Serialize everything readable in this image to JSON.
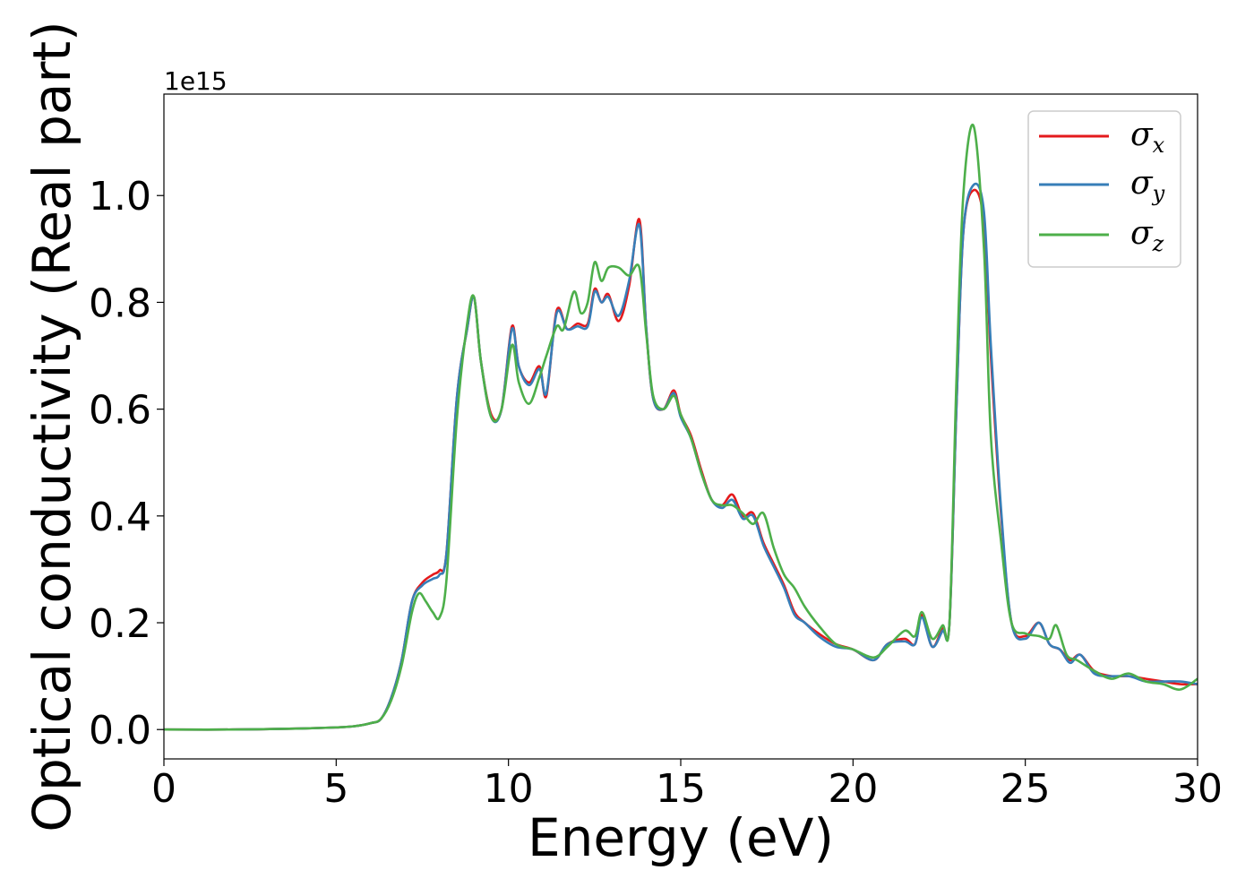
{
  "chart_data": {
    "type": "line",
    "xlabel": "Energy (eV)",
    "ylabel": "Optical conductivity (Real part)",
    "y_offset_label": "1e15",
    "y_scale": 1000000000000000.0,
    "xlim": [
      0,
      30
    ],
    "ylim": [
      -0.055,
      1.19
    ],
    "xticks": [
      0,
      5,
      10,
      15,
      20,
      25,
      30
    ],
    "xtick_labels": [
      "0",
      "5",
      "10",
      "15",
      "20",
      "25",
      "30"
    ],
    "yticks": [
      0.0,
      0.2,
      0.4,
      0.6,
      0.8,
      1.0
    ],
    "ytick_labels": [
      "0.0",
      "0.2",
      "0.4",
      "0.6",
      "0.8",
      "1.0"
    ],
    "grid": false,
    "legend_position": "top-right",
    "series": [
      {
        "name": "σ",
        "subscript": "x",
        "color": "#e41a1c",
        "x": [
          0,
          2,
          4,
          5,
          5.5,
          6,
          6.3,
          6.6,
          6.9,
          7.2,
          7.5,
          7.8,
          8.0,
          8.2,
          8.5,
          8.8,
          9.0,
          9.2,
          9.5,
          9.8,
          10.1,
          10.3,
          10.6,
          10.9,
          11.1,
          11.4,
          11.7,
          12.0,
          12.3,
          12.5,
          12.7,
          12.9,
          13.2,
          13.5,
          13.8,
          14.0,
          14.2,
          14.5,
          14.8,
          15.0,
          15.3,
          15.6,
          15.9,
          16.2,
          16.5,
          16.8,
          17.1,
          17.4,
          17.7,
          18.0,
          18.3,
          18.6,
          19.0,
          19.5,
          20.0,
          20.6,
          21.0,
          21.5,
          21.8,
          22.0,
          22.3,
          22.6,
          22.8,
          23.0,
          23.2,
          23.5,
          23.8,
          24.0,
          24.3,
          24.6,
          25.0,
          25.4,
          25.7,
          26.0,
          26.3,
          26.6,
          27.0,
          27.5,
          28.0,
          28.5,
          29.0,
          29.5,
          30.0
        ],
        "values": [
          0.0,
          0.0,
          0.002,
          0.004,
          0.006,
          0.012,
          0.02,
          0.06,
          0.13,
          0.24,
          0.275,
          0.29,
          0.298,
          0.33,
          0.62,
          0.75,
          0.81,
          0.69,
          0.59,
          0.6,
          0.755,
          0.68,
          0.65,
          0.68,
          0.625,
          0.785,
          0.75,
          0.76,
          0.76,
          0.825,
          0.8,
          0.815,
          0.765,
          0.83,
          0.955,
          0.75,
          0.62,
          0.6,
          0.635,
          0.59,
          0.55,
          0.485,
          0.43,
          0.42,
          0.44,
          0.4,
          0.405,
          0.35,
          0.31,
          0.27,
          0.22,
          0.2,
          0.18,
          0.16,
          0.15,
          0.13,
          0.16,
          0.17,
          0.16,
          0.215,
          0.155,
          0.19,
          0.2,
          0.6,
          0.93,
          1.01,
          0.95,
          0.7,
          0.4,
          0.2,
          0.175,
          0.2,
          0.16,
          0.15,
          0.13,
          0.14,
          0.11,
          0.1,
          0.1,
          0.095,
          0.09,
          0.085,
          0.085
        ]
      },
      {
        "name": "σ",
        "subscript": "y",
        "color": "#377eb8",
        "x": [
          0,
          2,
          4,
          5,
          5.5,
          6,
          6.3,
          6.6,
          6.9,
          7.2,
          7.5,
          7.8,
          8.0,
          8.2,
          8.5,
          8.8,
          9.0,
          9.2,
          9.5,
          9.8,
          10.1,
          10.3,
          10.6,
          10.9,
          11.1,
          11.4,
          11.7,
          12.0,
          12.3,
          12.5,
          12.7,
          12.9,
          13.2,
          13.5,
          13.8,
          14.0,
          14.2,
          14.5,
          14.8,
          15.0,
          15.3,
          15.6,
          15.9,
          16.2,
          16.5,
          16.8,
          17.1,
          17.4,
          17.7,
          18.0,
          18.3,
          18.6,
          19.0,
          19.5,
          20.0,
          20.6,
          21.0,
          21.5,
          21.8,
          22.0,
          22.3,
          22.6,
          22.8,
          23.0,
          23.2,
          23.5,
          23.8,
          24.0,
          24.3,
          24.6,
          25.0,
          25.4,
          25.7,
          26.0,
          26.3,
          26.6,
          27.0,
          27.5,
          28.0,
          28.5,
          29.0,
          29.5,
          30.0
        ],
        "values": [
          0.0,
          0.0,
          0.002,
          0.004,
          0.006,
          0.012,
          0.02,
          0.06,
          0.13,
          0.24,
          0.27,
          0.282,
          0.29,
          0.33,
          0.62,
          0.75,
          0.81,
          0.69,
          0.585,
          0.6,
          0.75,
          0.68,
          0.645,
          0.675,
          0.63,
          0.78,
          0.75,
          0.755,
          0.755,
          0.82,
          0.8,
          0.81,
          0.775,
          0.84,
          0.945,
          0.75,
          0.62,
          0.6,
          0.63,
          0.585,
          0.545,
          0.48,
          0.43,
          0.415,
          0.43,
          0.395,
          0.4,
          0.345,
          0.305,
          0.265,
          0.215,
          0.2,
          0.175,
          0.155,
          0.15,
          0.13,
          0.16,
          0.165,
          0.16,
          0.21,
          0.155,
          0.185,
          0.2,
          0.6,
          0.93,
          1.02,
          0.97,
          0.72,
          0.41,
          0.2,
          0.17,
          0.2,
          0.16,
          0.15,
          0.125,
          0.14,
          0.105,
          0.1,
          0.1,
          0.09,
          0.09,
          0.09,
          0.085
        ]
      },
      {
        "name": "σ",
        "subscript": "z",
        "color": "#4daf4a",
        "x": [
          0,
          2,
          4,
          5,
          5.5,
          6,
          6.3,
          6.6,
          6.9,
          7.2,
          7.4,
          7.6,
          7.8,
          8.0,
          8.2,
          8.5,
          8.8,
          9.0,
          9.2,
          9.5,
          9.8,
          10.1,
          10.3,
          10.6,
          10.9,
          11.1,
          11.4,
          11.6,
          11.9,
          12.1,
          12.3,
          12.5,
          12.7,
          12.9,
          13.2,
          13.5,
          13.8,
          14.0,
          14.2,
          14.5,
          14.8,
          15.0,
          15.3,
          15.6,
          15.9,
          16.2,
          16.5,
          16.8,
          17.1,
          17.4,
          17.7,
          18.0,
          18.3,
          18.6,
          19.0,
          19.5,
          20.0,
          20.6,
          21.0,
          21.5,
          21.8,
          22.0,
          22.3,
          22.6,
          22.8,
          23.0,
          23.2,
          23.5,
          23.8,
          24.0,
          24.3,
          24.6,
          25.0,
          25.4,
          25.7,
          25.9,
          26.2,
          26.5,
          27.0,
          27.5,
          28.0,
          28.5,
          29.0,
          29.5,
          30.0
        ],
        "values": [
          0.0,
          0.0,
          0.002,
          0.004,
          0.006,
          0.012,
          0.02,
          0.055,
          0.12,
          0.22,
          0.255,
          0.24,
          0.22,
          0.21,
          0.28,
          0.58,
          0.76,
          0.81,
          0.69,
          0.585,
          0.6,
          0.72,
          0.65,
          0.61,
          0.66,
          0.7,
          0.755,
          0.75,
          0.82,
          0.78,
          0.8,
          0.875,
          0.84,
          0.865,
          0.865,
          0.85,
          0.865,
          0.74,
          0.625,
          0.6,
          0.625,
          0.59,
          0.545,
          0.48,
          0.43,
          0.42,
          0.42,
          0.405,
          0.385,
          0.405,
          0.34,
          0.29,
          0.265,
          0.23,
          0.195,
          0.16,
          0.15,
          0.135,
          0.155,
          0.185,
          0.175,
          0.22,
          0.17,
          0.195,
          0.2,
          0.65,
          1.0,
          1.13,
          0.9,
          0.55,
          0.35,
          0.2,
          0.18,
          0.175,
          0.17,
          0.195,
          0.14,
          0.13,
          0.11,
          0.095,
          0.105,
          0.09,
          0.085,
          0.075,
          0.095
        ]
      }
    ]
  }
}
